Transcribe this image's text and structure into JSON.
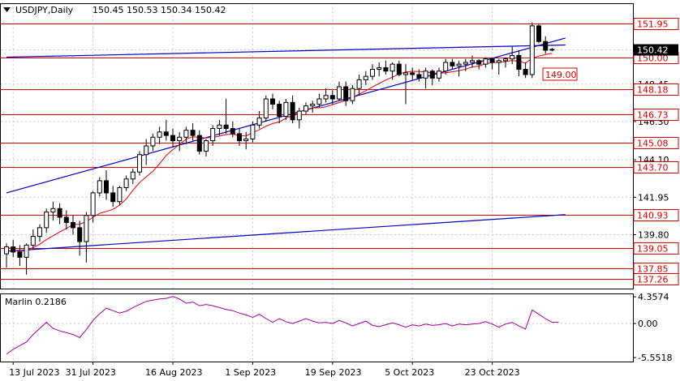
{
  "header": {
    "symbol_label": "USDJPY,Daily",
    "ohlc_label": "150.45 150.53 150.34 150.42"
  },
  "colors": {
    "background": "#ffffff",
    "frame": "#000000",
    "grid": "#c8c8c8",
    "level_line": "#d40000",
    "blue_line": "#0000c8",
    "red_ma": "#e60000",
    "candle_bull_body": "#ffffff",
    "candle_bear_body": "#000000",
    "oscillator": "#a000a0",
    "current_price_bg": "#000000"
  },
  "chart_data": [
    {
      "type": "candlestick",
      "instrument": "USDJPY",
      "timeframe": "Daily",
      "ohlc_last": {
        "open": 150.45,
        "high": 150.53,
        "low": 150.34,
        "close": 150.42
      },
      "ylim": [
        136.7,
        153.1
      ],
      "price_ticks": [
        "150.42",
        "148.45",
        "146.30",
        "144.10",
        "141.95",
        "139.80"
      ],
      "current_price": "150.42",
      "x_ticks": [
        {
          "label": "13 Jul 2023",
          "index": 1
        },
        {
          "label": "31 Jul 2023",
          "index": 13
        },
        {
          "label": "16 Aug 2023",
          "index": 25
        },
        {
          "label": "1 Sep 2023",
          "index": 37
        },
        {
          "label": "19 Sep 2023",
          "index": 49
        },
        {
          "label": "5 Oct 2023",
          "index": 61
        },
        {
          "label": "23 Oct 2023",
          "index": 73
        }
      ],
      "horizontal_levels": [
        {
          "label": "151.95",
          "value": 151.95
        },
        {
          "label": "150.00",
          "value": 150.0
        },
        {
          "label": "148.18",
          "value": 148.18
        },
        {
          "label": "146.73",
          "value": 146.73
        },
        {
          "label": "145.08",
          "value": 145.08
        },
        {
          "label": "143.70",
          "value": 143.7
        },
        {
          "label": "140.93",
          "value": 140.93
        },
        {
          "label": "139.05",
          "value": 139.05
        },
        {
          "label": "137.85",
          "value": 137.85
        },
        {
          "label": "137.26",
          "value": 137.26
        }
      ],
      "target_label": "149.00",
      "target_value": 149.0,
      "candles": [
        [
          138.7,
          139.3,
          137.9,
          139.1
        ],
        [
          139.1,
          139.5,
          138.5,
          138.8
        ],
        [
          138.8,
          139.2,
          138.0,
          138.5
        ],
        [
          138.5,
          139.3,
          137.5,
          139.2
        ],
        [
          139.2,
          140.1,
          139.0,
          139.7
        ],
        [
          139.7,
          140.4,
          139.4,
          140.2
        ],
        [
          140.2,
          141.3,
          139.9,
          141.1
        ],
        [
          141.1,
          141.7,
          140.6,
          141.3
        ],
        [
          141.3,
          141.6,
          140.4,
          140.8
        ],
        [
          140.8,
          141.2,
          140.1,
          140.5
        ],
        [
          140.5,
          140.9,
          139.8,
          140.2
        ],
        [
          140.2,
          140.6,
          138.6,
          139.4
        ],
        [
          139.4,
          141.1,
          138.2,
          140.9
        ],
        [
          140.9,
          142.3,
          140.5,
          142.2
        ],
        [
          142.2,
          143.1,
          142.0,
          142.9
        ],
        [
          142.9,
          143.5,
          141.8,
          142.2
        ],
        [
          142.2,
          142.6,
          141.4,
          141.7
        ],
        [
          141.7,
          142.6,
          141.5,
          142.5
        ],
        [
          142.5,
          143.2,
          142.3,
          143.0
        ],
        [
          143.0,
          143.6,
          142.7,
          143.4
        ],
        [
          143.4,
          144.6,
          143.2,
          144.4
        ],
        [
          144.4,
          145.3,
          143.8,
          144.9
        ],
        [
          144.9,
          145.6,
          144.6,
          145.4
        ],
        [
          145.4,
          146.0,
          145.0,
          145.7
        ],
        [
          145.7,
          146.4,
          145.2,
          145.5
        ],
        [
          145.5,
          145.9,
          144.8,
          145.2
        ],
        [
          145.2,
          145.7,
          144.6,
          145.4
        ],
        [
          145.4,
          146.0,
          145.0,
          145.8
        ],
        [
          145.8,
          146.2,
          145.2,
          145.5
        ],
        [
          145.5,
          145.8,
          144.4,
          144.6
        ],
        [
          144.6,
          145.3,
          144.3,
          145.2
        ],
        [
          145.2,
          146.1,
          144.9,
          145.9
        ],
        [
          145.9,
          146.4,
          145.5,
          146.1
        ],
        [
          146.1,
          147.6,
          145.6,
          145.9
        ],
        [
          145.9,
          146.3,
          145.4,
          145.6
        ],
        [
          145.6,
          145.9,
          144.9,
          145.2
        ],
        [
          145.2,
          145.7,
          144.7,
          145.3
        ],
        [
          145.3,
          146.3,
          145.1,
          146.1
        ],
        [
          146.1,
          146.9,
          145.9,
          146.5
        ],
        [
          146.5,
          147.8,
          146.3,
          147.6
        ],
        [
          147.6,
          147.9,
          147.0,
          147.3
        ],
        [
          147.3,
          147.5,
          146.2,
          146.6
        ],
        [
          146.6,
          147.6,
          146.4,
          147.4
        ],
        [
          147.4,
          147.8,
          146.2,
          146.4
        ],
        [
          146.4,
          147.1,
          145.9,
          146.9
        ],
        [
          146.9,
          147.4,
          146.7,
          147.2
        ],
        [
          147.2,
          147.5,
          146.8,
          147.3
        ],
        [
          147.3,
          147.9,
          147.1,
          147.6
        ],
        [
          147.6,
          148.2,
          147.4,
          147.8
        ],
        [
          147.8,
          148.1,
          147.3,
          147.6
        ],
        [
          147.6,
          148.6,
          147.5,
          148.3
        ],
        [
          148.3,
          148.6,
          147.2,
          147.5
        ],
        [
          147.5,
          148.4,
          147.3,
          148.2
        ],
        [
          148.2,
          149.0,
          147.8,
          148.7
        ],
        [
          148.7,
          149.2,
          148.4,
          148.9
        ],
        [
          148.9,
          149.6,
          148.7,
          149.3
        ],
        [
          149.3,
          149.7,
          148.9,
          149.4
        ],
        [
          149.4,
          149.8,
          149.0,
          149.2
        ],
        [
          149.2,
          149.7,
          148.7,
          149.6
        ],
        [
          149.6,
          149.8,
          148.9,
          149.0
        ],
        [
          149.0,
          149.6,
          147.3,
          149.1
        ],
        [
          149.1,
          149.4,
          148.7,
          149.0
        ],
        [
          149.0,
          149.3,
          148.6,
          148.8
        ],
        [
          148.8,
          149.4,
          148.2,
          149.2
        ],
        [
          149.2,
          149.3,
          148.4,
          148.8
        ],
        [
          148.8,
          149.4,
          148.6,
          149.2
        ],
        [
          149.2,
          149.9,
          149.0,
          149.7
        ],
        [
          149.7,
          149.9,
          149.3,
          149.5
        ],
        [
          149.5,
          149.8,
          148.9,
          149.6
        ],
        [
          149.6,
          149.9,
          149.2,
          149.7
        ],
        [
          149.7,
          150.1,
          149.4,
          149.8
        ],
        [
          149.8,
          149.9,
          149.3,
          149.6
        ],
        [
          149.6,
          150.0,
          149.4,
          149.9
        ],
        [
          149.9,
          149.9,
          149.3,
          149.7
        ],
        [
          149.7,
          149.9,
          149.0,
          149.8
        ],
        [
          149.8,
          150.0,
          149.4,
          149.9
        ],
        [
          149.9,
          150.6,
          149.6,
          150.1
        ],
        [
          150.1,
          150.4,
          148.9,
          149.3
        ],
        [
          149.3,
          149.7,
          148.8,
          149.0
        ],
        [
          149.0,
          152.0,
          148.8,
          151.8
        ],
        [
          151.8,
          151.9,
          150.8,
          150.9
        ],
        [
          150.9,
          151.2,
          150.2,
          150.4
        ],
        [
          150.45,
          150.53,
          150.34,
          150.42
        ]
      ],
      "blue_line_1": {
        "from": [
          0,
          142.2
        ],
        "to": [
          84,
          151.1
        ]
      },
      "blue_line_2": {
        "from": [
          0,
          138.85
        ],
        "to": [
          84,
          140.95
        ]
      },
      "blue_line_3": {
        "from": [
          0,
          150.0
        ],
        "to": [
          84,
          150.7
        ]
      }
    },
    {
      "type": "line",
      "title": "Marlin 0.2186",
      "ticks": [
        "4.3574",
        "0.00",
        "-5.5518"
      ],
      "ylim": [
        -6.2,
        4.9
      ],
      "values": [
        -5.0,
        -4.2,
        -3.6,
        -3.0,
        -1.8,
        -0.8,
        0.2,
        -0.8,
        -1.2,
        -1.5,
        -1.8,
        -2.3,
        -1.0,
        0.5,
        1.6,
        2.5,
        2.1,
        1.7,
        2.0,
        2.6,
        3.1,
        3.6,
        3.8,
        4.0,
        4.1,
        4.4,
        4.0,
        3.3,
        3.5,
        2.9,
        3.1,
        2.9,
        2.6,
        2.3,
        2.1,
        1.7,
        1.4,
        1.0,
        1.5,
        0.8,
        0.2,
        0.8,
        0.3,
        0.0,
        0.4,
        0.8,
        0.4,
        0.1,
        0.2,
        0.0,
        0.5,
        0.1,
        -0.4,
        0.0,
        0.4,
        -0.3,
        -0.5,
        -0.2,
        0.1,
        -0.2,
        -0.6,
        -0.2,
        -0.4,
        -0.1,
        -0.3,
        -0.2,
        0.0,
        -0.4,
        -0.1,
        -0.2,
        -0.1,
        0.0,
        0.3,
        -0.1,
        -0.6,
        -0.1,
        0.2,
        -0.4,
        -0.9,
        2.2,
        1.5,
        0.8,
        0.2,
        0.2186
      ]
    }
  ]
}
